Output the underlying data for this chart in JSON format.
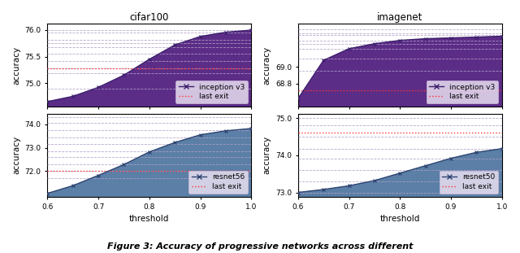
{
  "cifar100": {
    "title": "cifar100",
    "label": "inception v3",
    "x": [
      0.6,
      0.65,
      0.7,
      0.75,
      0.8,
      0.85,
      0.9,
      0.95,
      1.0
    ],
    "y": [
      74.65,
      74.75,
      74.92,
      75.15,
      75.45,
      75.72,
      75.88,
      75.96,
      76.0
    ],
    "last_exit": 75.28,
    "ylim": [
      74.55,
      76.12
    ],
    "yticks": [
      75.0,
      75.5,
      76.0
    ],
    "yticklabels": [
      "75.0",
      "75.5",
      "76.0"
    ],
    "fill_color": "#5c2d87",
    "line_color": "#3d1f6d",
    "dashed_lines": [
      75.95,
      75.82,
      75.68,
      75.55,
      75.42,
      75.28,
      75.18,
      74.9,
      76.0,
      75.75
    ]
  },
  "imagenet": {
    "title": "imagenet",
    "label": "inception v3",
    "x": [
      0.6,
      0.65,
      0.7,
      0.75,
      0.8,
      0.85,
      0.9,
      0.95,
      1.0
    ],
    "y": [
      68.62,
      69.08,
      69.22,
      69.28,
      69.32,
      69.34,
      69.35,
      69.36,
      69.37
    ],
    "last_exit": 68.72,
    "ylim": [
      68.52,
      69.52
    ],
    "yticks": [
      68.8,
      69.0
    ],
    "yticklabels": [
      "68.8",
      "69.0"
    ],
    "fill_color": "#5c2d87",
    "line_color": "#3d1f6d",
    "dashed_lines": [
      69.38,
      69.32,
      69.28,
      69.22,
      69.1,
      68.95,
      69.45,
      69.4
    ]
  },
  "resnet56": {
    "title": "",
    "label": "resnet56",
    "x": [
      0.6,
      0.65,
      0.7,
      0.75,
      0.8,
      0.85,
      0.9,
      0.95,
      1.0
    ],
    "y": [
      71.05,
      71.38,
      71.82,
      72.28,
      72.82,
      73.22,
      73.55,
      73.72,
      73.82
    ],
    "last_exit": 72.0,
    "ylim": [
      70.9,
      74.45
    ],
    "yticks": [
      72.0,
      73.0,
      74.0
    ],
    "yticklabels": [
      "72.0",
      "73.0",
      "74.0"
    ],
    "fill_color": "#5b7fa6",
    "line_color": "#2e4472",
    "dashed_lines": [
      74.05,
      73.75,
      73.45,
      73.15,
      72.85,
      72.6,
      72.3,
      72.0,
      71.7,
      74.3
    ]
  },
  "resnet50": {
    "title": "",
    "label": "resnet50",
    "x": [
      0.6,
      0.65,
      0.7,
      0.75,
      0.8,
      0.85,
      0.9,
      0.95,
      1.0
    ],
    "y": [
      73.0,
      73.08,
      73.18,
      73.32,
      73.52,
      73.72,
      73.92,
      74.08,
      74.18
    ],
    "last_exit": 74.62,
    "ylim": [
      72.88,
      75.12
    ],
    "yticks": [
      73.0,
      74.0,
      75.0
    ],
    "yticklabels": [
      "73.0",
      "74.0",
      "75.0"
    ],
    "fill_color": "#5b7fa6",
    "line_color": "#2e4472",
    "dashed_lines": [
      74.18,
      73.9,
      73.6,
      73.3,
      73.0,
      74.5,
      74.8,
      75.0
    ]
  },
  "caption": "Figure 3: Accuracy of progressive networks across different",
  "xticks": [
    0.6,
    0.7,
    0.8,
    0.9,
    1.0
  ],
  "xticklabels": [
    "0.6",
    "0.7",
    "0.8",
    "0.9",
    "1.0"
  ],
  "xlim": [
    0.6,
    1.0
  ],
  "last_exit_color": "#ff3333",
  "dashed_line_color": "#b0a0c8",
  "legend_bg": "#e8dff0"
}
